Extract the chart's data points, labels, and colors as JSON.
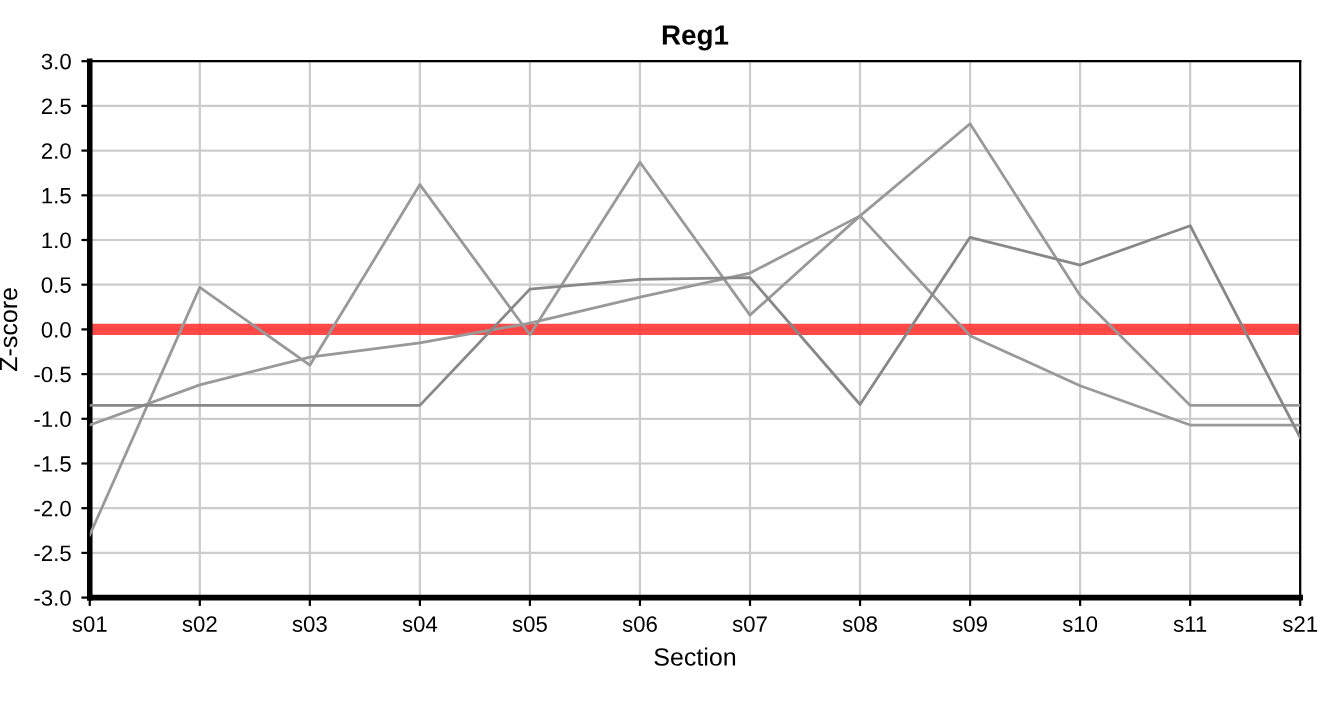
{
  "chart_data": {
    "type": "line",
    "title": "Reg1",
    "xlabel": "Section",
    "ylabel": "Z-score",
    "categories": [
      "s01",
      "s02",
      "s03",
      "s04",
      "s05",
      "s06",
      "s07",
      "s08",
      "s09",
      "s10",
      "s11",
      "s21"
    ],
    "series": [
      {
        "color": "#999999",
        "values": [
          -2.3,
          0.47,
          -0.4,
          1.62,
          -0.06,
          1.87,
          0.16,
          1.27,
          -0.07,
          -0.63,
          -1.07,
          -1.07
        ]
      },
      {
        "color": "#999999",
        "values": [
          -1.07,
          -0.62,
          -0.31,
          -0.15,
          0.07,
          0.36,
          0.63,
          1.27,
          2.3,
          0.38,
          -0.85,
          -0.85
        ]
      },
      {
        "color": "#888888",
        "values": [
          -0.85,
          -0.85,
          -0.85,
          -0.85,
          0.45,
          0.56,
          0.58,
          -0.84,
          1.03,
          0.72,
          1.16,
          -1.21
        ]
      }
    ],
    "ylim": [
      -3,
      3
    ],
    "yticks": [
      {
        "value": -3,
        "label": "-3.0"
      },
      {
        "value": -2.5,
        "label": "-2.5"
      },
      {
        "value": -2,
        "label": "-2.0"
      },
      {
        "value": -1.5,
        "label": "-1.5"
      },
      {
        "value": -1,
        "label": "-1.0"
      },
      {
        "value": -0.5,
        "label": "-0.5"
      },
      {
        "value": 0,
        "label": "0.0"
      },
      {
        "value": 0.5,
        "label": "0.5"
      },
      {
        "value": 1,
        "label": "1.0"
      },
      {
        "value": 1.5,
        "label": "1.5"
      },
      {
        "value": 2,
        "label": "2.0"
      },
      {
        "value": 2.5,
        "label": "2.5"
      },
      {
        "value": 3,
        "label": "3.0"
      }
    ],
    "ref_lines": [
      {
        "axis": "y",
        "value": 0,
        "color": "#ff2a2a"
      }
    ],
    "grid": true,
    "marker": "none",
    "line_style": "solid"
  }
}
